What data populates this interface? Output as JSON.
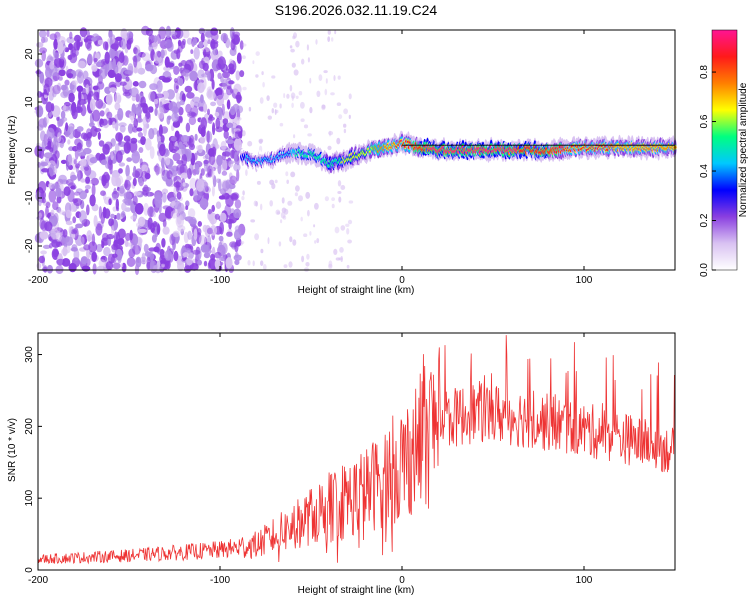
{
  "title": "S196.2026.032.11.19.C24",
  "chart_data": [
    {
      "type": "heatmap",
      "xlabel": "Height of straight line (km)",
      "ylabel": "Frequency (Hz)",
      "xlim": [
        -200,
        150
      ],
      "ylim": [
        -25,
        25
      ],
      "xticks": [
        -200,
        -100,
        0,
        100
      ],
      "yticks": [
        20,
        10,
        0,
        -10,
        -20
      ],
      "colorbar": {
        "label": "Normalized spectral amplitude",
        "range": [
          0,
          0.97
        ],
        "ticks": [
          "0.0",
          "0.2",
          "0.4",
          "0.6",
          "0.8"
        ],
        "colormap": [
          "#ffffff",
          "#d9c2f2",
          "#8a3fe0",
          "#0000ff",
          "#00c8ff",
          "#00ff80",
          "#ffff00",
          "#ff7f00",
          "#ff1a1a",
          "#ff1493"
        ]
      },
      "track": {
        "x": [
          -88,
          -80,
          -72,
          -64,
          -56,
          -48,
          -40,
          -32,
          -24,
          -16,
          -8,
          0,
          10,
          20,
          40,
          60,
          80,
          100,
          120,
          150
        ],
        "y": [
          -1.5,
          -2.5,
          -2.0,
          -1.0,
          -0.5,
          -1.0,
          -3.0,
          -2.0,
          -1.0,
          0,
          0.5,
          1.5,
          0.5,
          0,
          0,
          0,
          0,
          0.5,
          0.5,
          0.5
        ],
        "amplitude": [
          0.35,
          0.45,
          0.4,
          0.45,
          0.5,
          0.5,
          0.55,
          0.6,
          0.65,
          0.7,
          0.75,
          0.85,
          0.9,
          0.95,
          0.95,
          0.92,
          0.9,
          0.85,
          0.8,
          0.75
        ]
      },
      "noise_region": [
        -200,
        -88
      ],
      "noise_amplitude": 0.12
    },
    {
      "type": "line",
      "xlabel": "Height of straight line (km)",
      "ylabel": "SNR (10 * v/v)",
      "xlim": [
        -200,
        150
      ],
      "ylim": [
        0,
        330
      ],
      "xticks": [
        -200,
        -100,
        0,
        100
      ],
      "yticks": [
        0,
        100,
        200,
        300
      ],
      "color": "#ee3333",
      "trend": {
        "x": [
          -200,
          -150,
          -100,
          -80,
          -60,
          -40,
          -20,
          0,
          20,
          40,
          60,
          80,
          100,
          120,
          150
        ],
        "y": [
          15,
          20,
          28,
          35,
          60,
          90,
          110,
          150,
          205,
          220,
          215,
          205,
          195,
          185,
          165
        ]
      }
    }
  ]
}
